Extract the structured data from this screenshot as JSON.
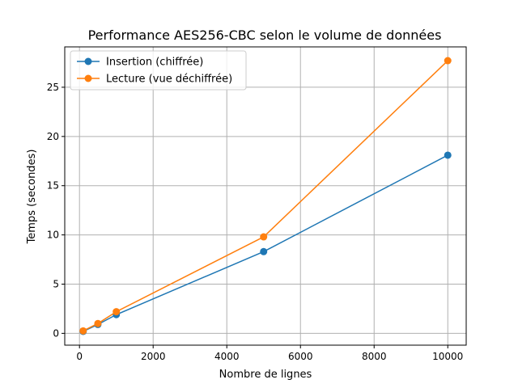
{
  "chart_data": {
    "type": "line",
    "title": "Performance AES256-CBC selon le volume de données",
    "xlabel": "Nombre de lignes",
    "ylabel": "Temps (secondes)",
    "xlim": [
      -400,
      10500
    ],
    "ylim": [
      -1.2,
      29.1
    ],
    "xticks": [
      0,
      2000,
      4000,
      6000,
      8000,
      10000
    ],
    "yticks": [
      0,
      5,
      10,
      15,
      20,
      25
    ],
    "grid": true,
    "legend_position": "top-left",
    "series": [
      {
        "name": "Insertion (chiffrée)",
        "color": "#1f77b4",
        "marker": "circle",
        "x": [
          100,
          500,
          1000,
          5000,
          10000
        ],
        "y": [
          0.2,
          0.9,
          1.9,
          8.3,
          18.1
        ]
      },
      {
        "name": "Lecture (vue déchiffrée)",
        "color": "#ff7f0e",
        "marker": "circle",
        "x": [
          100,
          500,
          1000,
          5000,
          10000
        ],
        "y": [
          0.25,
          1.0,
          2.2,
          9.8,
          27.7
        ]
      }
    ]
  }
}
